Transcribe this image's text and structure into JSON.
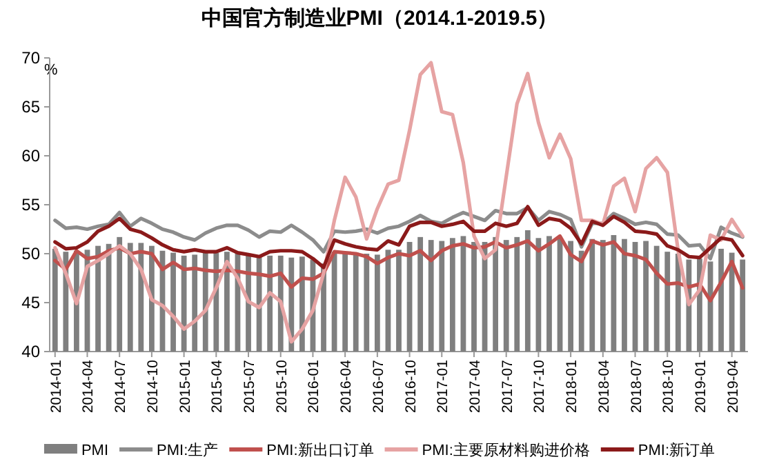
{
  "chart_data": {
    "type": "bar",
    "title": "中国官方制造业PMI（2014.1-2019.5）",
    "ylabel": "%",
    "categories": [
      "2014-01",
      null,
      null,
      "2014-04",
      null,
      null,
      "2014-07",
      null,
      null,
      "2014-10",
      null,
      null,
      "2015-01",
      null,
      null,
      "2015-04",
      null,
      null,
      "2015-07",
      null,
      null,
      "2015-10",
      null,
      null,
      "2016-01",
      null,
      null,
      "2016-04",
      null,
      null,
      "2016-07",
      null,
      null,
      "2016-10",
      null,
      null,
      "2017-01",
      null,
      null,
      "2017-04",
      null,
      null,
      "2017-07",
      null,
      null,
      "2017-10",
      null,
      null,
      "2018-01",
      null,
      null,
      "2018-04",
      null,
      null,
      "2018-07",
      null,
      null,
      "2018-10",
      null,
      null,
      "2019-01",
      null,
      null,
      "2019-04",
      null
    ],
    "series": [
      {
        "name": "PMI",
        "color": "#7f7f7f",
        "values": [
          50.5,
          50.2,
          50.3,
          50.4,
          50.8,
          51.0,
          51.7,
          51.1,
          51.1,
          50.8,
          50.3,
          50.1,
          49.8,
          49.9,
          50.1,
          50.1,
          50.2,
          50.2,
          50.0,
          49.7,
          49.8,
          49.8,
          49.6,
          49.7,
          49.4,
          49.0,
          50.2,
          50.1,
          50.1,
          50.0,
          49.9,
          50.4,
          50.4,
          51.2,
          51.7,
          51.4,
          51.3,
          51.6,
          51.8,
          51.2,
          51.2,
          51.7,
          51.4,
          51.7,
          52.4,
          51.6,
          51.8,
          51.6,
          51.3,
          50.3,
          51.5,
          51.4,
          51.9,
          51.5,
          51.2,
          51.3,
          50.8,
          50.2,
          50.0,
          49.4,
          49.5,
          49.2,
          50.5,
          50.1,
          49.4
        ]
      },
      {
        "name": "PMI:生产",
        "type": "line",
        "color": "#8c8c8c",
        "values": [
          53.4,
          52.6,
          52.7,
          52.5,
          52.8,
          53.0,
          54.2,
          52.8,
          53.6,
          53.1,
          52.5,
          52.2,
          51.7,
          51.4,
          52.1,
          52.6,
          52.9,
          52.9,
          52.4,
          51.7,
          52.3,
          52.2,
          52.9,
          52.2,
          51.4,
          50.2,
          52.3,
          52.2,
          52.3,
          52.5,
          52.1,
          52.6,
          52.8,
          53.3,
          53.9,
          53.3,
          53.1,
          53.7,
          54.2,
          53.8,
          53.4,
          54.4,
          54.1,
          54.1,
          54.7,
          53.4,
          54.3,
          54.0,
          53.5,
          50.7,
          53.1,
          53.1,
          54.1,
          53.6,
          53.0,
          53.2,
          53.0,
          52.0,
          51.9,
          50.8,
          50.9,
          49.5,
          52.7,
          52.1,
          51.7
        ]
      },
      {
        "name": "PMI:新出口订单",
        "type": "line",
        "color": "#c0504d",
        "values": [
          49.3,
          48.4,
          50.3,
          49.5,
          49.7,
          50.3,
          50.6,
          50.0,
          50.2,
          50.0,
          48.4,
          49.1,
          48.4,
          48.5,
          48.3,
          48.2,
          48.3,
          48.2,
          48.0,
          47.9,
          47.7,
          48.0,
          46.6,
          47.5,
          47.4,
          48.0,
          50.2,
          50.1,
          50.0,
          49.7,
          49.0,
          49.6,
          50.0,
          49.8,
          50.3,
          49.3,
          50.3,
          50.8,
          51.0,
          50.6,
          50.7,
          51.2,
          50.6,
          50.9,
          51.3,
          50.3,
          51.0,
          51.8,
          49.9,
          49.2,
          51.3,
          50.9,
          51.2,
          50.0,
          49.8,
          49.4,
          48.0,
          46.9,
          47.0,
          46.6,
          46.9,
          45.2,
          47.1,
          49.2,
          46.5
        ]
      },
      {
        "name": "PMI:主要原材料购进价格",
        "type": "line",
        "color": "#e6a3a3",
        "values": [
          50.6,
          48.0,
          44.9,
          48.7,
          49.3,
          50.0,
          50.8,
          50.0,
          48.4,
          45.3,
          44.7,
          43.6,
          42.3,
          43.1,
          44.2,
          46.5,
          49.2,
          47.5,
          45.1,
          44.5,
          46.0,
          45.1,
          41.0,
          42.3,
          44.2,
          48.0,
          53.4,
          57.8,
          55.8,
          51.5,
          54.6,
          57.1,
          57.5,
          62.6,
          68.3,
          69.5,
          64.5,
          64.2,
          59.3,
          51.8,
          49.5,
          50.4,
          57.9,
          65.3,
          68.4,
          63.4,
          59.8,
          62.2,
          59.7,
          53.4,
          53.4,
          53.0,
          56.9,
          57.7,
          54.3,
          58.7,
          59.8,
          58.3,
          50.3,
          44.8,
          46.3,
          51.9,
          51.4,
          53.5,
          51.8
        ]
      },
      {
        "name": "PMI:新订单",
        "type": "line",
        "color": "#8b1a1a",
        "values": [
          51.2,
          50.5,
          50.6,
          51.2,
          52.3,
          52.8,
          53.6,
          52.5,
          52.2,
          51.6,
          50.9,
          50.4,
          50.2,
          50.4,
          50.2,
          50.2,
          50.6,
          50.1,
          49.9,
          49.7,
          50.2,
          50.3,
          50.3,
          50.2,
          49.5,
          48.6,
          51.4,
          51.0,
          50.7,
          50.5,
          50.4,
          51.3,
          50.9,
          52.8,
          53.2,
          53.2,
          52.8,
          53.0,
          53.3,
          52.3,
          52.3,
          53.1,
          52.8,
          53.1,
          54.8,
          52.9,
          53.6,
          53.4,
          52.6,
          51.0,
          53.3,
          52.9,
          53.8,
          53.2,
          52.3,
          52.2,
          52.0,
          50.8,
          50.4,
          49.7,
          49.6,
          50.6,
          51.6,
          51.4,
          49.8
        ]
      }
    ],
    "ylim": [
      40,
      70
    ],
    "yticks": [
      40,
      45,
      50,
      55,
      60,
      65,
      70
    ],
    "legend": "bottom"
  }
}
